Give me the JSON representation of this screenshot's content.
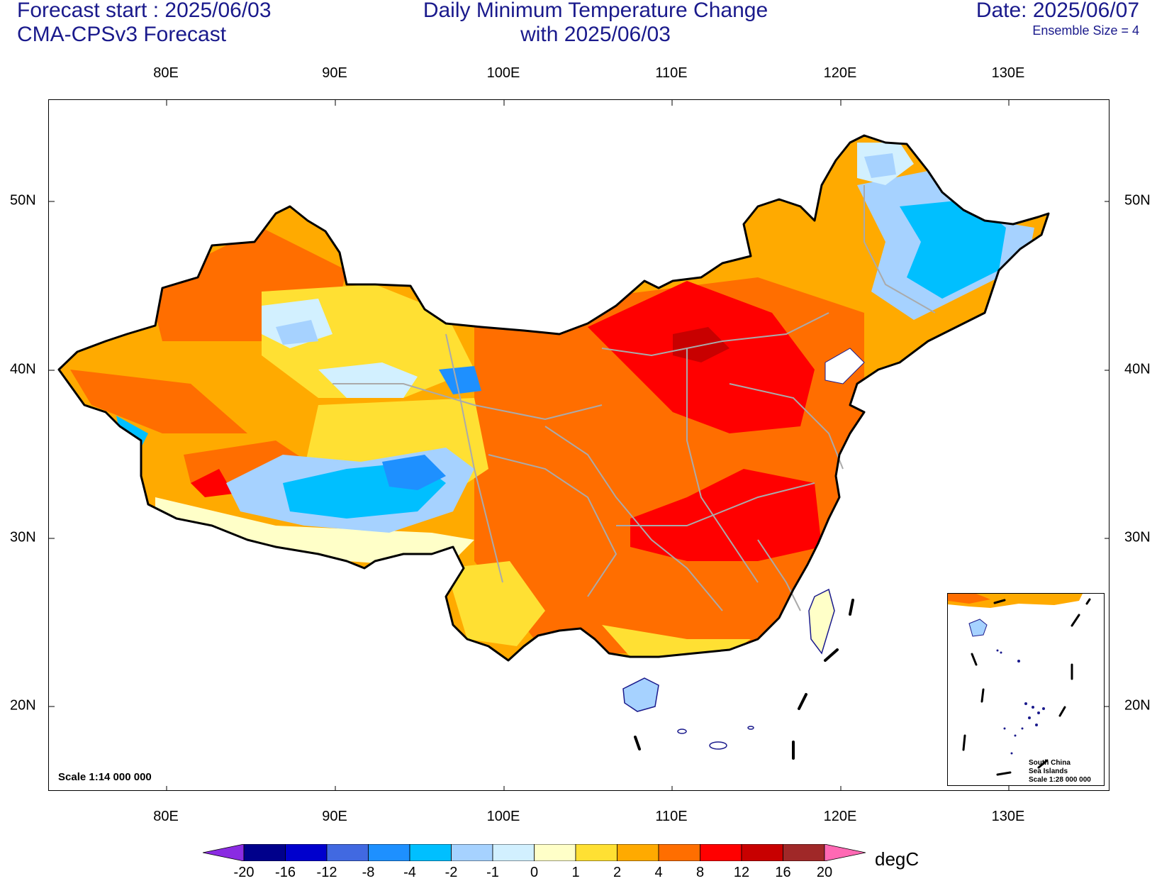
{
  "header": {
    "forecast_start": "Forecast start : 2025/06/03",
    "model": "CMA-CPSv3 Forecast",
    "title_line1": "Daily Minimum Temperature Change",
    "title_line2": "with 2025/06/03",
    "date": "Date: 2025/06/07",
    "ensemble": "Ensemble Size = 4"
  },
  "axes": {
    "lon_labels": [
      "80E",
      "90E",
      "100E",
      "110E",
      "120E",
      "130E"
    ],
    "lat_labels": [
      "50N",
      "40N",
      "30N",
      "20N"
    ]
  },
  "map": {
    "scale_note": "Scale 1:14 000 000",
    "inset_caption": [
      "South China",
      "Sea Islands",
      "Scale 1:28 000 000"
    ]
  },
  "colorbar": {
    "unit": "degC",
    "labels": [
      "-20",
      "-16",
      "-12",
      "-8",
      "-4",
      "-2",
      "-1",
      "0",
      "1",
      "2",
      "4",
      "8",
      "12",
      "16",
      "20"
    ],
    "colors": {
      "below": "#8a2be2",
      "bins": [
        "#00008b",
        "#0000cd",
        "#4169e1",
        "#1e90ff",
        "#00bfff",
        "#a6d2ff",
        "#d2f0ff",
        "#ffffc8",
        "#ffe033",
        "#ffaa00",
        "#ff6e00",
        "#ff0000",
        "#c80000",
        "#a02828"
      ],
      "above": "#ff69b4"
    }
  }
}
